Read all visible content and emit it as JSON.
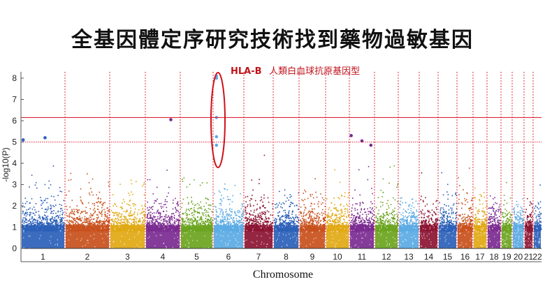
{
  "title": "全基因體定序研究技術找到藥物過敏基因",
  "chart_data": {
    "type": "scatter",
    "subtype": "manhattan",
    "title": "全基因體定序研究技術找到藥物過敏基因",
    "xlabel": "Chromosome",
    "ylabel": "-log10(P)",
    "ylim": [
      0,
      8.3
    ],
    "yticks": [
      "0",
      "1",
      "2",
      "3",
      "4",
      "5",
      "6",
      "7",
      "8"
    ],
    "chromosomes": [
      "1",
      "2",
      "3",
      "4",
      "5",
      "6",
      "7",
      "8",
      "9",
      "10",
      "11",
      "12",
      "13",
      "14",
      "15",
      "16",
      "17",
      "18",
      "19",
      "20",
      "21",
      "22"
    ],
    "chromosome_labels": [
      "1",
      "2",
      "3",
      "4",
      "5",
      "6",
      "7",
      "8",
      "9",
      "10",
      "11",
      "12",
      "13",
      "14",
      "15",
      "16",
      "17",
      "18",
      "19",
      "20",
      "21",
      "22"
    ],
    "colors": [
      "#2a5fb8",
      "#c8501c",
      "#e0a812",
      "#7a2a90",
      "#6aa41e",
      "#5aaae4",
      "#8c1432",
      "#2a5fb8",
      "#c8501c",
      "#e0a812",
      "#7a2a90",
      "#6aa41e",
      "#5aaae4",
      "#8c1432",
      "#2a5fb8",
      "#c8501c",
      "#e0a812",
      "#7a2a90",
      "#6aa41e",
      "#5aaae4",
      "#8c1432",
      "#2a5fb8"
    ],
    "chromosome_max": [
      4.1,
      4.8,
      4.2,
      4.4,
      3.4,
      4.5,
      4.4,
      2.8,
      3.3,
      4.6,
      4.5,
      4.5,
      2.4,
      4.2,
      3.9,
      4.1,
      4.7,
      4.2,
      4.7,
      2.6,
      2.5,
      3.7
    ],
    "thresholds": [
      {
        "value": 6.15,
        "style": "solid"
      },
      {
        "value": 5.0,
        "style": "dotted"
      }
    ],
    "top_hits": [
      {
        "chr": 1,
        "pos": 0.02,
        "y": 5.1
      },
      {
        "chr": 1,
        "pos": 0.55,
        "y": 5.2
      },
      {
        "chr": 4,
        "pos": 0.75,
        "y": 6.05
      },
      {
        "chr": 6,
        "pos": 0.07,
        "y": 8.1
      },
      {
        "chr": 6,
        "pos": 0.07,
        "y": 8.0
      },
      {
        "chr": 6,
        "pos": 0.07,
        "y": 6.15
      },
      {
        "chr": 6,
        "pos": 0.07,
        "y": 5.25
      },
      {
        "chr": 6,
        "pos": 0.07,
        "y": 4.85
      },
      {
        "chr": 11,
        "pos": 0.02,
        "y": 5.3
      },
      {
        "chr": 11,
        "pos": 0.5,
        "y": 5.05
      },
      {
        "chr": 11,
        "pos": 0.9,
        "y": 4.85
      }
    ],
    "annotation": {
      "label": "HLA-B",
      "text": "人類白血球抗原基因型",
      "chr": 6
    }
  }
}
